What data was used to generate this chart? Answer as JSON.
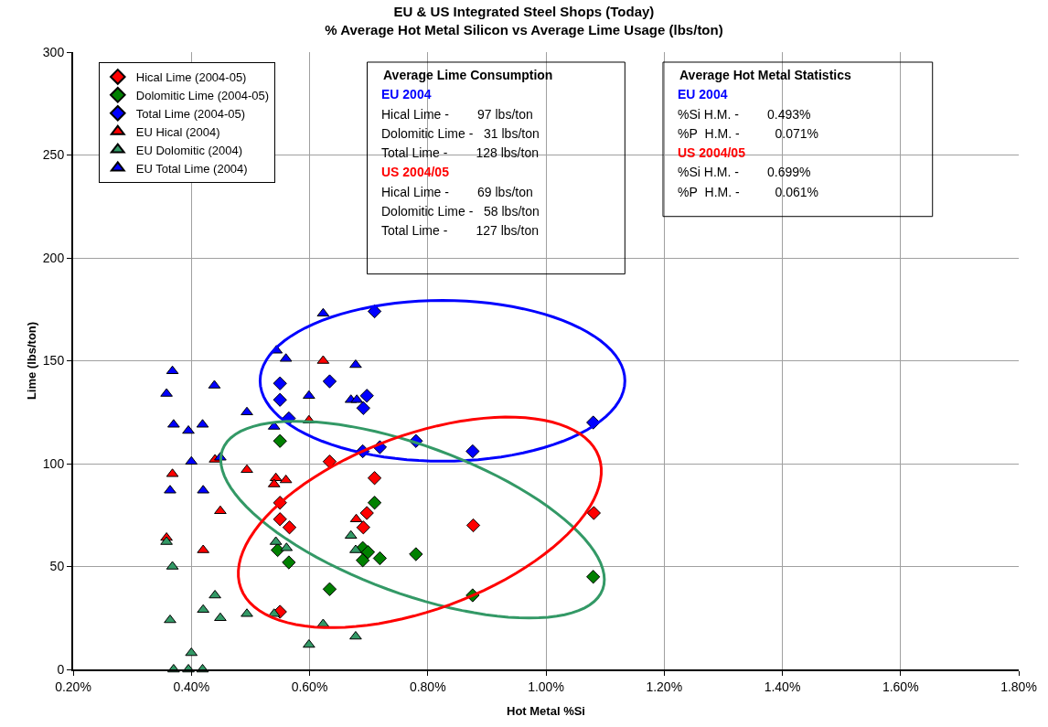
{
  "chart_data": {
    "type": "scatter",
    "title": "EU & US Integrated Steel Shops (Today)\n% Average Hot Metal Silicon vs Average Lime Usage (lbs/ton)",
    "xlabel": "Hot Metal %Si",
    "ylabel": "Lime (lbs/ton)",
    "xlim": [
      0.2,
      1.8
    ],
    "ylim": [
      0,
      300
    ],
    "xticks": [
      {
        "value": 0.2,
        "label": "0.20%"
      },
      {
        "value": 0.4,
        "label": "0.40%"
      },
      {
        "value": 0.6,
        "label": "0.60%"
      },
      {
        "value": 0.8,
        "label": "0.80%"
      },
      {
        "value": 1.0,
        "label": "1.00%"
      },
      {
        "value": 1.2,
        "label": "1.20%"
      },
      {
        "value": 1.4,
        "label": "1.40%"
      },
      {
        "value": 1.6,
        "label": "1.60%"
      },
      {
        "value": 1.8,
        "label": "1.80%"
      }
    ],
    "yticks": [
      0,
      50,
      100,
      150,
      200,
      250,
      300
    ],
    "grid": true,
    "legend": "top left",
    "series": [
      {
        "name": "Hical Lime (2004-05)",
        "type": "scatter",
        "marker": "diamond",
        "color": "#ff0000",
        "x": [
          0.55,
          0.55,
          0.566,
          0.55,
          0.634,
          0.71,
          0.697,
          0.691,
          0.877,
          1.081
        ],
        "values": [
          81,
          73,
          69,
          28,
          101,
          93,
          76,
          69,
          70,
          76
        ]
      },
      {
        "name": "Dolomitic Lime (2004-05)",
        "type": "scatter",
        "marker": "diamond",
        "color": "#008000",
        "x": [
          0.55,
          0.546,
          0.565,
          0.71,
          0.69,
          0.699,
          0.69,
          0.719,
          0.78,
          0.634,
          0.876,
          1.08
        ],
        "values": [
          111,
          58,
          52,
          81,
          59,
          57,
          53,
          54,
          56,
          39,
          36,
          45
        ]
      },
      {
        "name": "Total Lime (2004-05)",
        "type": "scatter",
        "marker": "diamond",
        "color": "#0000ff",
        "x": [
          0.55,
          0.55,
          0.565,
          0.71,
          0.634,
          0.697,
          0.691,
          0.69,
          0.719,
          0.78,
          0.876,
          1.08
        ],
        "values": [
          139,
          131,
          122,
          174,
          140,
          133,
          127,
          106,
          108,
          111,
          106,
          120
        ]
      },
      {
        "name": "EU Hical (2004)",
        "type": "scatter",
        "marker": "triangle",
        "color": "#ff0000",
        "x": [
          0.368,
          0.44,
          0.494,
          0.543,
          0.56,
          0.54,
          0.449,
          0.358,
          0.42,
          0.623,
          0.599,
          0.679
        ],
        "values": [
          95,
          102,
          97,
          93,
          92,
          90,
          77,
          64,
          58,
          150,
          121,
          73
        ]
      },
      {
        "name": "EU Dolomitic (2004)",
        "type": "scatter",
        "marker": "triangle",
        "color": "#339966",
        "x": [
          0.358,
          0.368,
          0.44,
          0.42,
          0.449,
          0.494,
          0.364,
          0.54,
          0.4,
          0.37,
          0.395,
          0.419,
          0.543,
          0.561,
          0.599,
          0.678,
          0.623,
          0.67,
          0.678
        ],
        "values": [
          62,
          50,
          36,
          29,
          25,
          27,
          24,
          27,
          8,
          0,
          0,
          0,
          62,
          59,
          12,
          16,
          22,
          65,
          58
        ]
      },
      {
        "name": "EU Total Lime (2004)",
        "type": "scatter",
        "marker": "triangle",
        "color": "#0000ff",
        "x": [
          0.368,
          0.358,
          0.439,
          0.494,
          0.37,
          0.395,
          0.419,
          0.4,
          0.449,
          0.364,
          0.42,
          0.54,
          0.544,
          0.56,
          0.623,
          0.678,
          0.599,
          0.67,
          0.68
        ],
        "values": [
          145,
          134,
          138,
          125,
          119,
          116,
          119,
          101,
          103,
          87,
          87,
          118,
          155,
          151,
          173,
          148,
          133,
          131,
          131
        ]
      }
    ],
    "annotations": [
      "Average Lime Consumption",
      "EU 2004",
      "Hical Lime -        97 lbs/ton",
      "Dolomitic Lime -   31 lbs/ton",
      "Total Lime -        128 lbs/ton",
      "US 2004/05",
      "Hical Lime -        69 lbs/ton",
      "Dolomitic Lime -   58 lbs/ton",
      "Total Lime -        127 lbs/ton",
      "Average Hot Metal Statistics",
      "EU 2004",
      "%Si H.M. -        0.493%",
      "%P  H.M. -          0.071%",
      "US 2004/05",
      "%Si H.M. -        0.699%",
      "%P  H.M. -          0.061%"
    ]
  }
}
